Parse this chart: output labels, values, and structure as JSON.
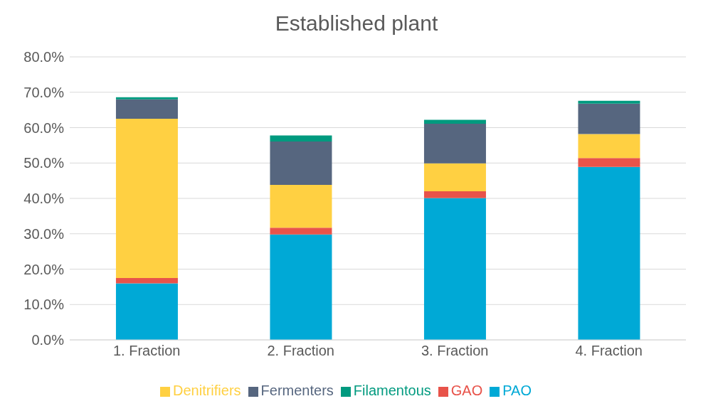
{
  "chart_data": {
    "type": "bar",
    "title": "Established plant",
    "stacked": true,
    "categories": [
      "1. Fraction",
      "2. Fraction",
      "3. Fraction",
      "4. Fraction"
    ],
    "series": [
      {
        "name": "PAO",
        "color": "#00a9d6",
        "values": [
          16.0,
          29.8,
          40.1,
          48.9
        ]
      },
      {
        "name": "GAO",
        "color": "#e8534a",
        "values": [
          1.5,
          1.9,
          1.9,
          2.5
        ]
      },
      {
        "name": "Denitrifiers",
        "color": "#ffd042",
        "values": [
          45.0,
          12.1,
          7.9,
          6.8
        ]
      },
      {
        "name": "Fermenters",
        "color": "#56667f",
        "values": [
          5.5,
          12.3,
          11.2,
          8.6
        ]
      },
      {
        "name": "Filamentous",
        "color": "#009a7f",
        "values": [
          0.6,
          1.7,
          1.1,
          0.8
        ]
      }
    ],
    "ylim": [
      0,
      80
    ],
    "yticks": [
      {
        "value": 0,
        "label": "0.0%"
      },
      {
        "value": 10,
        "label": "10.0%"
      },
      {
        "value": 20,
        "label": "20.0%"
      },
      {
        "value": 30,
        "label": "30.0%"
      },
      {
        "value": 40,
        "label": "40.0%"
      },
      {
        "value": 50,
        "label": "50.0%"
      },
      {
        "value": 60,
        "label": "60.0%"
      },
      {
        "value": 70,
        "label": "70.0%"
      },
      {
        "value": 80,
        "label": "80.0%"
      }
    ],
    "grid": "y",
    "legend": "bottom"
  }
}
